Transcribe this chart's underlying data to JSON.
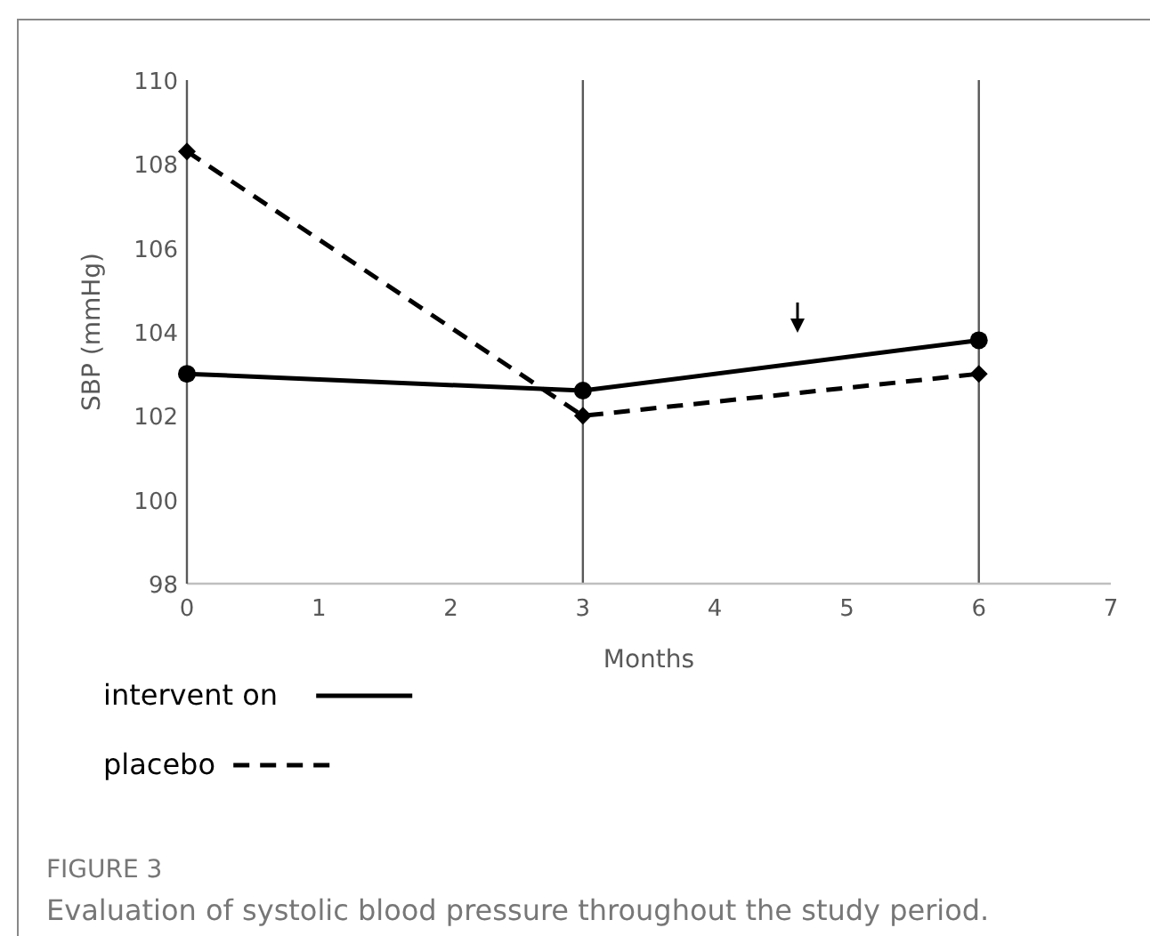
{
  "chart_data": {
    "type": "line",
    "title": "FIGURE 3",
    "subtitle": "Evaluation of systolic blood pressure throughout the study period.",
    "xlabel": "Months",
    "ylabel": "SBP (mmHg)",
    "x": [
      0,
      3,
      6
    ],
    "series": [
      {
        "name": "intervent on",
        "color": "#000000",
        "values": [
          103,
          102.6,
          103.8
        ],
        "marker": "circle",
        "line_style": "solid"
      },
      {
        "name": "placebo",
        "color": "#000000",
        "values": [
          108.3,
          102,
          103
        ],
        "marker": "diamond",
        "line_style": "dashed"
      }
    ],
    "xlim": [
      0,
      7
    ],
    "xticks": [
      0,
      1,
      2,
      3,
      4,
      5,
      6,
      7
    ],
    "ylim": [
      98,
      110
    ],
    "yticks": [
      98,
      100,
      102,
      104,
      106,
      108,
      110
    ],
    "ref_lines": [
      {
        "axis": "x",
        "value": 3,
        "color": "#595959"
      },
      {
        "axis": "x",
        "value": 6,
        "color": "#595959"
      }
    ],
    "legend": "bottom left",
    "grid": false
  }
}
